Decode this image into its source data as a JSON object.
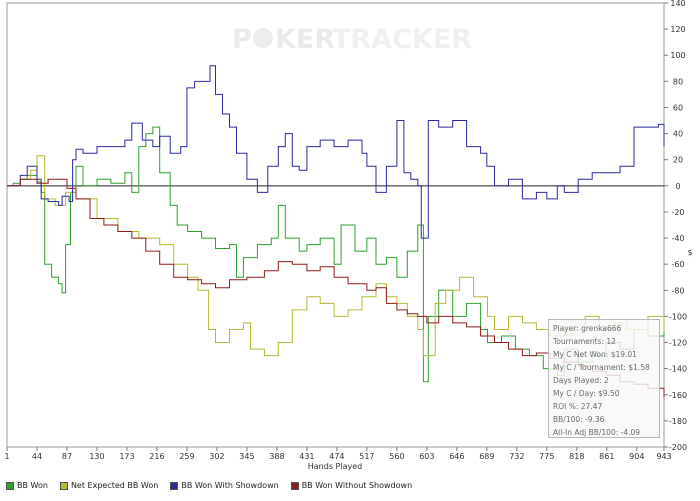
{
  "watermark": {
    "part1": "P",
    "part2": "KER",
    "part3": "TRACKER"
  },
  "chart_data": {
    "type": "line",
    "xlabel": "Hands Played",
    "ylabel": "$",
    "xlim": [
      1,
      943
    ],
    "ylim": [
      -200,
      140
    ],
    "x_ticks": [
      "1",
      "44",
      "87",
      "130",
      "173",
      "216",
      "259",
      "302",
      "345",
      "388",
      "431",
      "474",
      "517",
      "560",
      "603",
      "646",
      "689",
      "732",
      "775",
      "818",
      "861",
      "904",
      "943"
    ],
    "y_ticks": [
      "140",
      "120",
      "100",
      "80",
      "60",
      "40",
      "20",
      "0",
      "-20",
      "-40",
      "-60",
      "-80",
      "-100",
      "-120",
      "-140",
      "-160",
      "-180",
      "-200"
    ],
    "series": [
      {
        "name": "BB Won",
        "color": "#2ea02e",
        "points": [
          [
            1,
            0
          ],
          [
            10,
            2
          ],
          [
            20,
            5
          ],
          [
            30,
            8
          ],
          [
            44,
            3
          ],
          [
            50,
            -5
          ],
          [
            55,
            -60
          ],
          [
            65,
            -70
          ],
          [
            75,
            -75
          ],
          [
            80,
            -82
          ],
          [
            85,
            -45
          ],
          [
            92,
            -5
          ],
          [
            100,
            15
          ],
          [
            110,
            0
          ],
          [
            130,
            5
          ],
          [
            150,
            2
          ],
          [
            170,
            10
          ],
          [
            180,
            -5
          ],
          [
            190,
            30
          ],
          [
            200,
            40
          ],
          [
            210,
            45
          ],
          [
            220,
            10
          ],
          [
            235,
            -15
          ],
          [
            245,
            -30
          ],
          [
            260,
            -35
          ],
          [
            280,
            -40
          ],
          [
            300,
            -48
          ],
          [
            320,
            -45
          ],
          [
            330,
            -70
          ],
          [
            340,
            -55
          ],
          [
            360,
            -45
          ],
          [
            380,
            -40
          ],
          [
            390,
            -15
          ],
          [
            400,
            -40
          ],
          [
            420,
            -50
          ],
          [
            431,
            -45
          ],
          [
            450,
            -40
          ],
          [
            470,
            -60
          ],
          [
            480,
            -30
          ],
          [
            500,
            -50
          ],
          [
            517,
            -40
          ],
          [
            530,
            -60
          ],
          [
            545,
            -55
          ],
          [
            560,
            -70
          ],
          [
            575,
            -50
          ],
          [
            590,
            -30
          ],
          [
            598,
            -150
          ],
          [
            605,
            -100
          ],
          [
            620,
            -80
          ],
          [
            640,
            -100
          ],
          [
            660,
            -90
          ],
          [
            680,
            -110
          ],
          [
            690,
            -120
          ],
          [
            710,
            -115
          ],
          [
            730,
            -125
          ],
          [
            750,
            -130
          ],
          [
            770,
            -140
          ],
          [
            790,
            -145
          ],
          [
            800,
            -125
          ],
          [
            820,
            -135
          ],
          [
            840,
            -130
          ],
          [
            860,
            -120
          ],
          [
            880,
            -125
          ],
          [
            900,
            -110
          ],
          [
            920,
            -115
          ],
          [
            943,
            -110
          ]
        ]
      },
      {
        "name": "Net Expected BB Won",
        "color": "#b8b832",
        "points": [
          [
            1,
            0
          ],
          [
            20,
            5
          ],
          [
            35,
            12
          ],
          [
            44,
            23
          ],
          [
            55,
            -10
          ],
          [
            70,
            -15
          ],
          [
            85,
            -5
          ],
          [
            100,
            -10
          ],
          [
            130,
            -25
          ],
          [
            160,
            -35
          ],
          [
            190,
            -40
          ],
          [
            220,
            -45
          ],
          [
            240,
            -60
          ],
          [
            260,
            -70
          ],
          [
            275,
            -80
          ],
          [
            290,
            -110
          ],
          [
            300,
            -120
          ],
          [
            320,
            -110
          ],
          [
            340,
            -105
          ],
          [
            350,
            -125
          ],
          [
            370,
            -130
          ],
          [
            390,
            -120
          ],
          [
            410,
            -95
          ],
          [
            431,
            -85
          ],
          [
            450,
            -90
          ],
          [
            470,
            -100
          ],
          [
            490,
            -95
          ],
          [
            510,
            -85
          ],
          [
            530,
            -75
          ],
          [
            545,
            -85
          ],
          [
            560,
            -90
          ],
          [
            575,
            -100
          ],
          [
            590,
            -110
          ],
          [
            598,
            -130
          ],
          [
            615,
            -90
          ],
          [
            630,
            -80
          ],
          [
            650,
            -70
          ],
          [
            670,
            -85
          ],
          [
            690,
            -100
          ],
          [
            700,
            -110
          ],
          [
            720,
            -100
          ],
          [
            740,
            -105
          ],
          [
            760,
            -110
          ],
          [
            780,
            -115
          ],
          [
            800,
            -110
          ],
          [
            830,
            -100
          ],
          [
            850,
            -110
          ],
          [
            870,
            -105
          ],
          [
            890,
            -110
          ],
          [
            920,
            -100
          ],
          [
            943,
            -112
          ]
        ]
      },
      {
        "name": "BB Won With Showdown",
        "color": "#2a2a9e",
        "points": [
          [
            1,
            0
          ],
          [
            10,
            0
          ],
          [
            20,
            8
          ],
          [
            30,
            15
          ],
          [
            44,
            5
          ],
          [
            50,
            -10
          ],
          [
            60,
            -12
          ],
          [
            75,
            -15
          ],
          [
            80,
            -8
          ],
          [
            90,
            -12
          ],
          [
            95,
            20
          ],
          [
            100,
            28
          ],
          [
            110,
            25
          ],
          [
            130,
            30
          ],
          [
            150,
            30
          ],
          [
            170,
            35
          ],
          [
            180,
            48
          ],
          [
            195,
            35
          ],
          [
            210,
            30
          ],
          [
            220,
            38
          ],
          [
            235,
            25
          ],
          [
            250,
            30
          ],
          [
            259,
            75
          ],
          [
            270,
            80
          ],
          [
            285,
            80
          ],
          [
            292,
            92
          ],
          [
            300,
            70
          ],
          [
            310,
            55
          ],
          [
            320,
            45
          ],
          [
            330,
            25
          ],
          [
            345,
            5
          ],
          [
            360,
            -5
          ],
          [
            375,
            15
          ],
          [
            390,
            30
          ],
          [
            400,
            40
          ],
          [
            410,
            15
          ],
          [
            420,
            12
          ],
          [
            431,
            30
          ],
          [
            450,
            35
          ],
          [
            470,
            30
          ],
          [
            490,
            35
          ],
          [
            510,
            25
          ],
          [
            517,
            15
          ],
          [
            530,
            -5
          ],
          [
            545,
            15
          ],
          [
            560,
            50
          ],
          [
            570,
            10
          ],
          [
            580,
            5
          ],
          [
            590,
            0
          ],
          [
            595,
            -40
          ],
          [
            605,
            50
          ],
          [
            620,
            45
          ],
          [
            640,
            50
          ],
          [
            660,
            30
          ],
          [
            680,
            25
          ],
          [
            689,
            15
          ],
          [
            700,
            0
          ],
          [
            720,
            5
          ],
          [
            740,
            -10
          ],
          [
            760,
            -5
          ],
          [
            775,
            -10
          ],
          [
            790,
            0
          ],
          [
            800,
            -5
          ],
          [
            820,
            5
          ],
          [
            840,
            10
          ],
          [
            860,
            10
          ],
          [
            880,
            15
          ],
          [
            900,
            45
          ],
          [
            920,
            45
          ],
          [
            935,
            47
          ],
          [
            943,
            30
          ]
        ]
      },
      {
        "name": "BB Won Without Showdown",
        "color": "#8e1a1a",
        "points": [
          [
            1,
            0
          ],
          [
            20,
            5
          ],
          [
            44,
            2
          ],
          [
            60,
            5
          ],
          [
            87,
            -2
          ],
          [
            100,
            -10
          ],
          [
            120,
            -25
          ],
          [
            140,
            -30
          ],
          [
            160,
            -35
          ],
          [
            180,
            -40
          ],
          [
            200,
            -50
          ],
          [
            220,
            -60
          ],
          [
            240,
            -70
          ],
          [
            260,
            -72
          ],
          [
            280,
            -75
          ],
          [
            300,
            -78
          ],
          [
            320,
            -72
          ],
          [
            345,
            -70
          ],
          [
            370,
            -65
          ],
          [
            390,
            -58
          ],
          [
            410,
            -60
          ],
          [
            431,
            -65
          ],
          [
            450,
            -62
          ],
          [
            470,
            -70
          ],
          [
            490,
            -75
          ],
          [
            517,
            -80
          ],
          [
            530,
            -78
          ],
          [
            545,
            -90
          ],
          [
            560,
            -95
          ],
          [
            575,
            -98
          ],
          [
            590,
            -100
          ],
          [
            603,
            -105
          ],
          [
            620,
            -100
          ],
          [
            640,
            -105
          ],
          [
            660,
            -108
          ],
          [
            680,
            -115
          ],
          [
            700,
            -120
          ],
          [
            720,
            -125
          ],
          [
            740,
            -130
          ],
          [
            760,
            -128
          ],
          [
            780,
            -132
          ],
          [
            800,
            -135
          ],
          [
            820,
            -138
          ],
          [
            840,
            -142
          ],
          [
            860,
            -145
          ],
          [
            880,
            -150
          ],
          [
            900,
            -152
          ],
          [
            920,
            -155
          ],
          [
            943,
            -162
          ]
        ]
      }
    ]
  },
  "stats": [
    "Player: grenka666",
    "Tournaments: 12",
    "My C Net Won: $19.01",
    "My C / Tournament: $1.58",
    "Days Played: 2",
    "My C / Day: $9.50",
    "ROI %: 27.47",
    "BB/100: -9.36",
    "All-In Adj BB/100: -4.09"
  ]
}
